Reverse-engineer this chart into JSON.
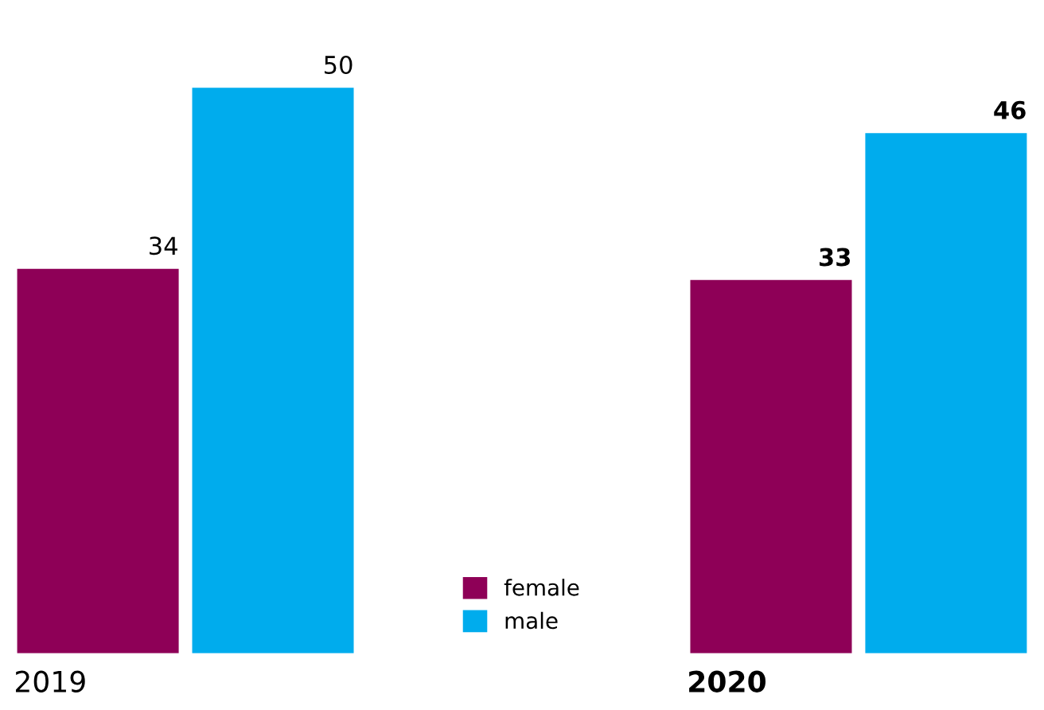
{
  "chart_data": {
    "type": "bar",
    "categories": [
      "2019",
      "2020"
    ],
    "series": [
      {
        "name": "female",
        "color": "#8e0057",
        "values": [
          34,
          33
        ]
      },
      {
        "name": "male",
        "color": "#00aced",
        "values": [
          50,
          46
        ]
      }
    ],
    "data_labels": true,
    "legend": "bottom"
  }
}
